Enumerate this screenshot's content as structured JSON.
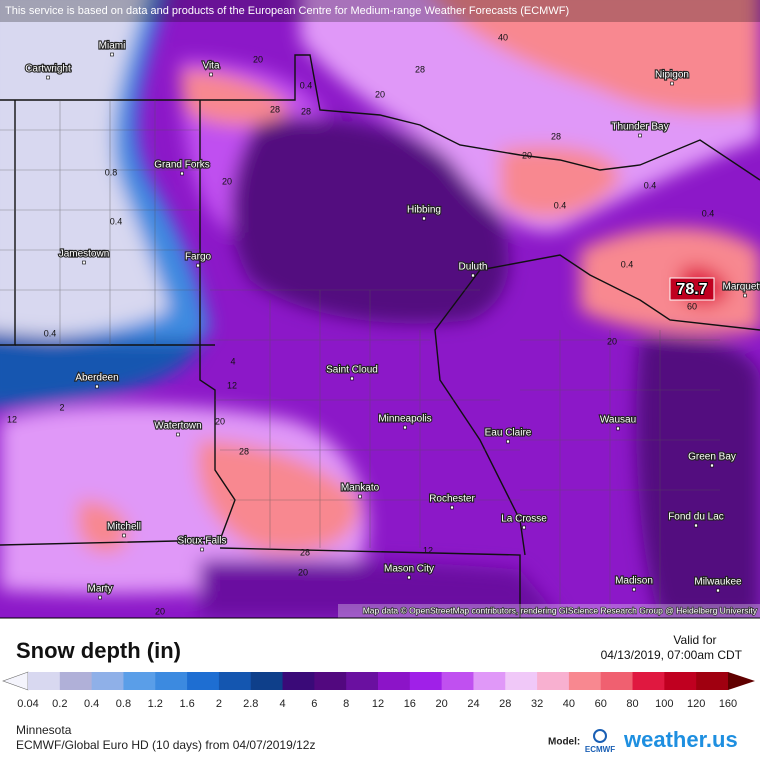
{
  "header": {
    "notice": "This service is based on data and products of the European Centre for Medium-range Weather Forecasts (ECMWF)"
  },
  "map": {
    "cities": [
      "Miami",
      "Cartwright",
      "Vita",
      "Grand Forks",
      "Hibbing",
      "Jamestown",
      "Fargo",
      "Duluth",
      "Nipigon",
      "Thunder Bay",
      "Marquette",
      "Aberdeen",
      "Saint Cloud",
      "Minneapolis",
      "Eau Claire",
      "Wausau",
      "Watertown",
      "Green Bay",
      "Mankato",
      "Rochester",
      "La Crosse",
      "Fond du Lac",
      "Mitchell",
      "Sioux Falls",
      "Mason City",
      "Madison",
      "Milwaukee",
      "Marty"
    ],
    "contour_labels": [
      "40",
      "28",
      "20",
      "0.4",
      "20",
      "28",
      "20",
      "28",
      "0.8",
      "20",
      "0.4",
      "0.4",
      "0.4",
      "0.4",
      "0.4",
      "20",
      "28",
      "12",
      "20",
      "28",
      "12",
      "20",
      "28",
      "20",
      "60",
      "0.4",
      "4",
      "12",
      "2"
    ],
    "max_label": "78.7",
    "attribution": "Map data © OpenStreetMap contributors, rendering GIScience Research Group @ Heidelberg University"
  },
  "legend": {
    "title": "Snow depth (in)",
    "levels": [
      "0.04",
      "0.2",
      "0.4",
      "0.8",
      "1.2",
      "1.6",
      "2",
      "2.8",
      "4",
      "6",
      "8",
      "12",
      "16",
      "20",
      "24",
      "28",
      "32",
      "40",
      "60",
      "80",
      "100",
      "120",
      "160"
    ],
    "colors": [
      "#f4f4fc",
      "#d8d8f0",
      "#b0b0d8",
      "#8fb0e8",
      "#5a9ee8",
      "#3c8ae0",
      "#1e6ed2",
      "#1456b0",
      "#0e3f8a",
      "#3a0a78",
      "#52087f",
      "#6a10a0",
      "#8c14c8",
      "#a020e8",
      "#c050f0",
      "#e098f8",
      "#f0c8f8",
      "#f8b0d0",
      "#f88890",
      "#f06070",
      "#e01840",
      "#c00020",
      "#a00010",
      "#600000"
    ]
  },
  "footer": {
    "valid_label": "Valid for",
    "valid_time": "04/13/2019, 07:00am CDT",
    "region": "Minnesota",
    "model_run": "ECMWF/Global Euro HD (10 days) from 04/07/2019/12z",
    "model_label": "Model:",
    "model_logo": "ECMWF",
    "brand": "weather.us"
  }
}
